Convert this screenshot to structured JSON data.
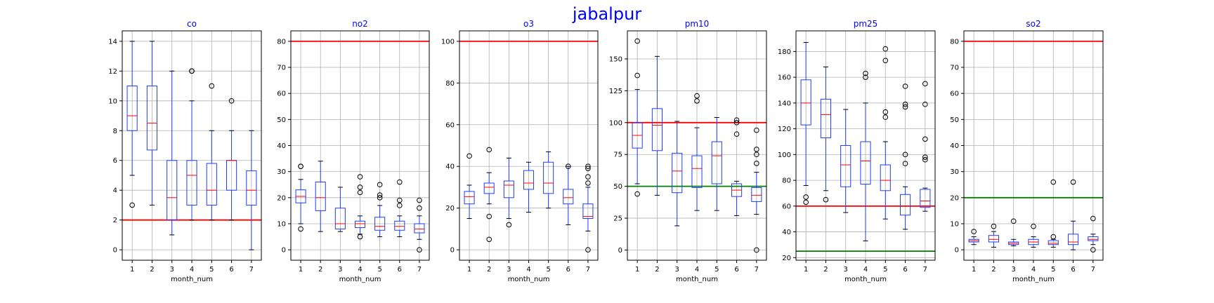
{
  "figure": {
    "title": "jabalpur"
  },
  "colors": {
    "box": "#1f3dff",
    "median": "#ff0000",
    "red_line": "#ff0000",
    "green_line": "#008000",
    "grid": "#b0b0b0"
  },
  "chart_data": [
    {
      "type": "box",
      "title": "co",
      "xlabel": "month_num",
      "categories": [
        "1",
        "2",
        "3",
        "4",
        "5",
        "6",
        "7"
      ],
      "ylim": [
        -0.7,
        14.7
      ],
      "yticks": [
        0,
        2,
        4,
        6,
        8,
        10,
        12,
        14
      ],
      "hlines": [
        {
          "y": 2,
          "color": "red"
        }
      ],
      "boxes": [
        {
          "q1": 8,
          "med": 9,
          "q3": 11,
          "lo": 5,
          "hi": 14,
          "fliers": [
            3
          ]
        },
        {
          "q1": 6.7,
          "med": 8.5,
          "q3": 11,
          "lo": 3,
          "hi": 14,
          "fliers": []
        },
        {
          "q1": 2,
          "med": 3.5,
          "q3": 6,
          "lo": 1,
          "hi": 12,
          "fliers": []
        },
        {
          "q1": 3,
          "med": 5,
          "q3": 6,
          "lo": 2,
          "hi": 10,
          "fliers": [
            12,
            12
          ]
        },
        {
          "q1": 3,
          "med": 4,
          "q3": 5.8,
          "lo": 2,
          "hi": 8,
          "fliers": [
            11
          ]
        },
        {
          "q1": 4,
          "med": 6,
          "q3": 6,
          "lo": 2,
          "hi": 8,
          "fliers": [
            10
          ]
        },
        {
          "q1": 3,
          "med": 4,
          "q3": 5.3,
          "lo": 0,
          "hi": 8,
          "fliers": []
        }
      ]
    },
    {
      "type": "box",
      "title": "no2",
      "xlabel": "month_num",
      "categories": [
        "1",
        "2",
        "3",
        "4",
        "5",
        "6",
        "7"
      ],
      "ylim": [
        -4,
        84
      ],
      "yticks": [
        0,
        10,
        20,
        30,
        40,
        50,
        60,
        70,
        80
      ],
      "hlines": [
        {
          "y": 80,
          "color": "red"
        }
      ],
      "boxes": [
        {
          "q1": 18,
          "med": 20.5,
          "q3": 23,
          "lo": 10,
          "hi": 27,
          "fliers": [
            8,
            32,
            32
          ]
        },
        {
          "q1": 15,
          "med": 20,
          "q3": 26,
          "lo": 7,
          "hi": 34,
          "fliers": []
        },
        {
          "q1": 8,
          "med": 10,
          "q3": 16,
          "lo": 7,
          "hi": 24,
          "fliers": []
        },
        {
          "q1": 8.5,
          "med": 10,
          "q3": 11,
          "lo": 6,
          "hi": 13,
          "fliers": [
            5,
            22,
            24,
            28
          ]
        },
        {
          "q1": 7.5,
          "med": 9,
          "q3": 12.5,
          "lo": 5,
          "hi": 17,
          "fliers": [
            20,
            21,
            25
          ]
        },
        {
          "q1": 7.5,
          "med": 9,
          "q3": 11,
          "lo": 5,
          "hi": 13,
          "fliers": [
            17,
            19,
            26
          ]
        },
        {
          "q1": 6.5,
          "med": 8,
          "q3": 10,
          "lo": 4,
          "hi": 13,
          "fliers": [
            0,
            16,
            19
          ]
        }
      ]
    },
    {
      "type": "box",
      "title": "o3",
      "xlabel": "month_num",
      "categories": [
        "1",
        "2",
        "3",
        "4",
        "5",
        "6",
        "7"
      ],
      "ylim": [
        -5,
        105
      ],
      "yticks": [
        0,
        20,
        40,
        60,
        80,
        100
      ],
      "hlines": [
        {
          "y": 100,
          "color": "red"
        }
      ],
      "boxes": [
        {
          "q1": 22,
          "med": 25.5,
          "q3": 28,
          "lo": 15,
          "hi": 31,
          "fliers": [
            45
          ]
        },
        {
          "q1": 27,
          "med": 30,
          "q3": 32,
          "lo": 22,
          "hi": 37,
          "fliers": [
            5,
            16,
            48
          ]
        },
        {
          "q1": 25,
          "med": 31,
          "q3": 33,
          "lo": 15,
          "hi": 44,
          "fliers": [
            12
          ]
        },
        {
          "q1": 29,
          "med": 32,
          "q3": 38,
          "lo": 18,
          "hi": 42,
          "fliers": []
        },
        {
          "q1": 27,
          "med": 32,
          "q3": 42,
          "lo": 20,
          "hi": 47,
          "fliers": []
        },
        {
          "q1": 22,
          "med": 25,
          "q3": 29,
          "lo": 12,
          "hi": 40,
          "fliers": [
            40
          ]
        },
        {
          "q1": 15,
          "med": 16,
          "q3": 22,
          "lo": 9,
          "hi": 30,
          "fliers": [
            0,
            32,
            35,
            39,
            40
          ]
        }
      ]
    },
    {
      "type": "box",
      "title": "pm10",
      "xlabel": "month_num",
      "categories": [
        "1",
        "2",
        "3",
        "4",
        "5",
        "6",
        "7"
      ],
      "ylim": [
        -8,
        172
      ],
      "yticks": [
        0,
        25,
        50,
        75,
        100,
        125,
        150
      ],
      "hlines": [
        {
          "y": 100,
          "color": "red"
        },
        {
          "y": 50,
          "color": "green"
        }
      ],
      "boxes": [
        {
          "q1": 80,
          "med": 90,
          "q3": 100,
          "lo": 52,
          "hi": 126,
          "fliers": [
            44,
            137,
            164
          ]
        },
        {
          "q1": 78,
          "med": 98,
          "q3": 111,
          "lo": 43,
          "hi": 152,
          "fliers": []
        },
        {
          "q1": 45,
          "med": 62,
          "q3": 76,
          "lo": 19,
          "hi": 101,
          "fliers": []
        },
        {
          "q1": 49,
          "med": 64,
          "q3": 74,
          "lo": 31,
          "hi": 96,
          "fliers": [
            117,
            121
          ]
        },
        {
          "q1": 52,
          "med": 74,
          "q3": 85,
          "lo": 31,
          "hi": 104,
          "fliers": []
        },
        {
          "q1": 42,
          "med": 47,
          "q3": 52,
          "lo": 27,
          "hi": 54,
          "fliers": [
            91,
            100,
            102
          ]
        },
        {
          "q1": 38,
          "med": 43,
          "q3": 49,
          "lo": 28,
          "hi": 61,
          "fliers": [
            0,
            68,
            75,
            79,
            94
          ]
        }
      ]
    },
    {
      "type": "box",
      "title": "pm25",
      "xlabel": "month_num",
      "categories": [
        "1",
        "2",
        "3",
        "4",
        "5",
        "6",
        "7"
      ],
      "ylim": [
        18,
        196
      ],
      "yticks": [
        20,
        40,
        60,
        80,
        100,
        120,
        140,
        160,
        180
      ],
      "hlines": [
        {
          "y": 60,
          "color": "red"
        },
        {
          "y": 25,
          "color": "green"
        }
      ],
      "boxes": [
        {
          "q1": 123,
          "med": 140,
          "q3": 158,
          "lo": 76,
          "hi": 187,
          "fliers": [
            63,
            67
          ]
        },
        {
          "q1": 113,
          "med": 131,
          "q3": 143,
          "lo": 72,
          "hi": 168,
          "fliers": [
            65
          ]
        },
        {
          "q1": 75,
          "med": 92,
          "q3": 107,
          "lo": 55,
          "hi": 135,
          "fliers": []
        },
        {
          "q1": 77,
          "med": 95,
          "q3": 110,
          "lo": 33,
          "hi": 140,
          "fliers": [
            160,
            163
          ]
        },
        {
          "q1": 72,
          "med": 80,
          "q3": 92,
          "lo": 50,
          "hi": 110,
          "fliers": [
            129,
            133,
            173,
            182
          ]
        },
        {
          "q1": 53,
          "med": 60,
          "q3": 69,
          "lo": 42,
          "hi": 75,
          "fliers": [
            93,
            100,
            137,
            139,
            153
          ]
        },
        {
          "q1": 59,
          "med": 64,
          "q3": 73,
          "lo": 56,
          "hi": 74,
          "fliers": [
            96,
            98,
            112,
            139,
            155
          ]
        }
      ]
    },
    {
      "type": "box",
      "title": "so2",
      "xlabel": "month_num",
      "categories": [
        "1",
        "2",
        "3",
        "4",
        "5",
        "6",
        "7"
      ],
      "ylim": [
        -4,
        84
      ],
      "yticks": [
        0,
        10,
        20,
        30,
        40,
        50,
        60,
        70,
        80
      ],
      "hlines": [
        {
          "y": 80,
          "color": "red"
        },
        {
          "y": 20,
          "color": "green"
        }
      ],
      "boxes": [
        {
          "q1": 3,
          "med": 3.5,
          "q3": 4,
          "lo": 2,
          "hi": 5,
          "fliers": [
            7
          ]
        },
        {
          "q1": 3,
          "med": 4,
          "q3": 5.5,
          "lo": 1,
          "hi": 7,
          "fliers": [
            9
          ]
        },
        {
          "q1": 2,
          "med": 2.5,
          "q3": 3,
          "lo": 1.5,
          "hi": 4,
          "fliers": [
            11
          ]
        },
        {
          "q1": 2,
          "med": 3,
          "q3": 4,
          "lo": 1,
          "hi": 5,
          "fliers": [
            9
          ]
        },
        {
          "q1": 2,
          "med": 2.5,
          "q3": 3.5,
          "lo": 1,
          "hi": 4,
          "fliers": [
            5,
            26
          ]
        },
        {
          "q1": 2,
          "med": 3,
          "q3": 6,
          "lo": 0,
          "hi": 11,
          "fliers": [
            26
          ]
        },
        {
          "q1": 3.5,
          "med": 4,
          "q3": 5,
          "lo": 2,
          "hi": 6,
          "fliers": [
            0,
            12
          ]
        }
      ]
    }
  ]
}
